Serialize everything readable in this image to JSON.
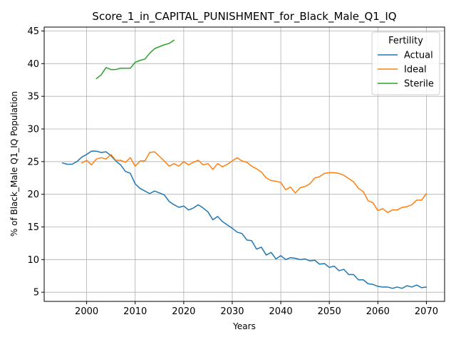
{
  "chart_data": {
    "type": "line",
    "title": "Score_1_in_CAPITAL_PUNISHMENT_for_Black_Male_Q1_IQ",
    "xlabel": "Years",
    "ylabel": "% of Black_Male Q1_IQ Population",
    "xlim": [
      1991.25,
      2073.75
    ],
    "ylim": [
      3.6,
      45.6
    ],
    "xticks": [
      2000,
      2010,
      2020,
      2030,
      2040,
      2050,
      2060,
      2070
    ],
    "yticks": [
      5,
      10,
      15,
      20,
      25,
      30,
      35,
      40,
      45
    ],
    "grid": true,
    "legend": {
      "title": "Fertility",
      "position": "top-right"
    },
    "series": [
      {
        "name": "Actual",
        "color": "#1f77b4",
        "x": [
          1995,
          1996,
          1997,
          1998,
          1999,
          2000,
          2001,
          2002,
          2003,
          2004,
          2005,
          2006,
          2007,
          2008,
          2009,
          2010,
          2011,
          2012,
          2013,
          2014,
          2015,
          2016,
          2017,
          2018,
          2019,
          2020,
          2021,
          2022,
          2023,
          2024,
          2025,
          2026,
          2027,
          2028,
          2029,
          2030,
          2031,
          2032,
          2033,
          2034,
          2035,
          2036,
          2037,
          2038,
          2039,
          2040,
          2041,
          2042,
          2043,
          2044,
          2045,
          2046,
          2047,
          2048,
          2049,
          2050,
          2051,
          2052,
          2053,
          2054,
          2055,
          2056,
          2057,
          2058,
          2059,
          2060,
          2061,
          2062,
          2063,
          2064,
          2065,
          2066,
          2067,
          2068,
          2069,
          2070
        ],
        "values": [
          24.8,
          24.6,
          24.6,
          25.0,
          25.7,
          26.1,
          26.6,
          26.6,
          26.4,
          26.5,
          25.9,
          25.1,
          24.5,
          23.5,
          23.2,
          21.6,
          20.9,
          20.5,
          20.1,
          20.5,
          20.2,
          19.9,
          18.9,
          18.4,
          18.0,
          18.2,
          17.6,
          17.9,
          18.4,
          17.9,
          17.3,
          16.1,
          16.6,
          15.8,
          15.3,
          14.8,
          14.2,
          14.0,
          13.0,
          12.9,
          11.6,
          11.9,
          10.7,
          11.1,
          10.1,
          10.6,
          10.0,
          10.3,
          10.2,
          10.0,
          10.1,
          9.8,
          9.9,
          9.3,
          9.4,
          8.8,
          9.0,
          8.3,
          8.5,
          7.7,
          7.7,
          6.9,
          6.9,
          6.3,
          6.2,
          5.9,
          5.8,
          5.8,
          5.6,
          5.8,
          5.6,
          6.0,
          5.8,
          6.1,
          5.7,
          5.8
        ]
      },
      {
        "name": "Ideal",
        "color": "#ff7f0e",
        "x": [
          1999,
          2000,
          2001,
          2002,
          2003,
          2004,
          2005,
          2006,
          2007,
          2008,
          2009,
          2010,
          2011,
          2012,
          2013,
          2014,
          2015,
          2016,
          2017,
          2018,
          2019,
          2020,
          2021,
          2022,
          2023,
          2024,
          2025,
          2026,
          2027,
          2028,
          2029,
          2030,
          2031,
          2032,
          2033,
          2034,
          2035,
          2036,
          2037,
          2038,
          2039,
          2040,
          2041,
          2042,
          2043,
          2044,
          2045,
          2046,
          2047,
          2048,
          2049,
          2050,
          2051,
          2052,
          2053,
          2054,
          2055,
          2056,
          2057,
          2058,
          2059,
          2060,
          2061,
          2062,
          2063,
          2064,
          2065,
          2066,
          2067,
          2068,
          2069,
          2070
        ],
        "values": [
          24.8,
          25.2,
          24.5,
          25.4,
          25.6,
          25.4,
          26.1,
          25.2,
          25.2,
          24.9,
          25.6,
          24.3,
          25.1,
          25.1,
          26.4,
          26.5,
          25.8,
          25.1,
          24.3,
          24.7,
          24.3,
          25.0,
          24.5,
          24.9,
          25.2,
          24.5,
          24.7,
          23.8,
          24.7,
          24.2,
          24.6,
          25.1,
          25.6,
          25.1,
          24.9,
          24.3,
          23.9,
          23.4,
          22.5,
          22.1,
          22.0,
          21.8,
          20.7,
          21.1,
          20.2,
          21.0,
          21.2,
          21.6,
          22.5,
          22.7,
          23.2,
          23.3,
          23.3,
          23.2,
          22.9,
          22.4,
          21.9,
          20.9,
          20.4,
          19.0,
          18.7,
          17.5,
          17.8,
          17.2,
          17.6,
          17.6,
          18.0,
          18.1,
          18.4,
          19.1,
          19.1,
          20.1
        ]
      },
      {
        "name": "Sterile",
        "color": "#2ca02c",
        "x": [
          2002,
          2003,
          2004,
          2005,
          2006,
          2007,
          2008,
          2009,
          2010,
          2011,
          2012,
          2013,
          2014,
          2015,
          2016,
          2017,
          2018
        ],
        "values": [
          37.7,
          38.3,
          39.4,
          39.1,
          39.1,
          39.3,
          39.3,
          39.3,
          40.2,
          40.5,
          40.7,
          41.6,
          42.3,
          42.6,
          42.9,
          43.1,
          43.6
        ]
      }
    ]
  }
}
